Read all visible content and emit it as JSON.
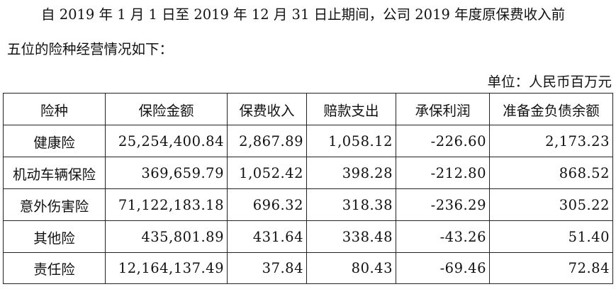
{
  "intro": {
    "line1": "自 2019 年 1 月 1 日至 2019 年 12 月 31 日止期间，公司 2019 年度原保费收入前",
    "line2": "五位的险种经营情况如下："
  },
  "unit_label": "单位：人民币百万元",
  "table": {
    "headers": [
      "险种",
      "保险金额",
      "保费收入",
      "赔款支出",
      "承保利润",
      "准备金负债余额"
    ],
    "rows": [
      [
        "健康险",
        "25,254,400.84",
        "2,867.89",
        "1,058.12",
        "-226.60",
        "2,173.23"
      ],
      [
        "机动车辆保险",
        "369,659.79",
        "1,052.42",
        "398.28",
        "-212.80",
        "868.52"
      ],
      [
        "意外伤害险",
        "71,122,183.18",
        "696.32",
        "318.38",
        "-236.29",
        "305.22"
      ],
      [
        "其他险",
        "435,801.89",
        "431.64",
        "338.48",
        "-43.26",
        "51.40"
      ],
      [
        "责任险",
        "12,164,137.49",
        "37.84",
        "80.43",
        "-69.46",
        "72.84"
      ]
    ]
  }
}
